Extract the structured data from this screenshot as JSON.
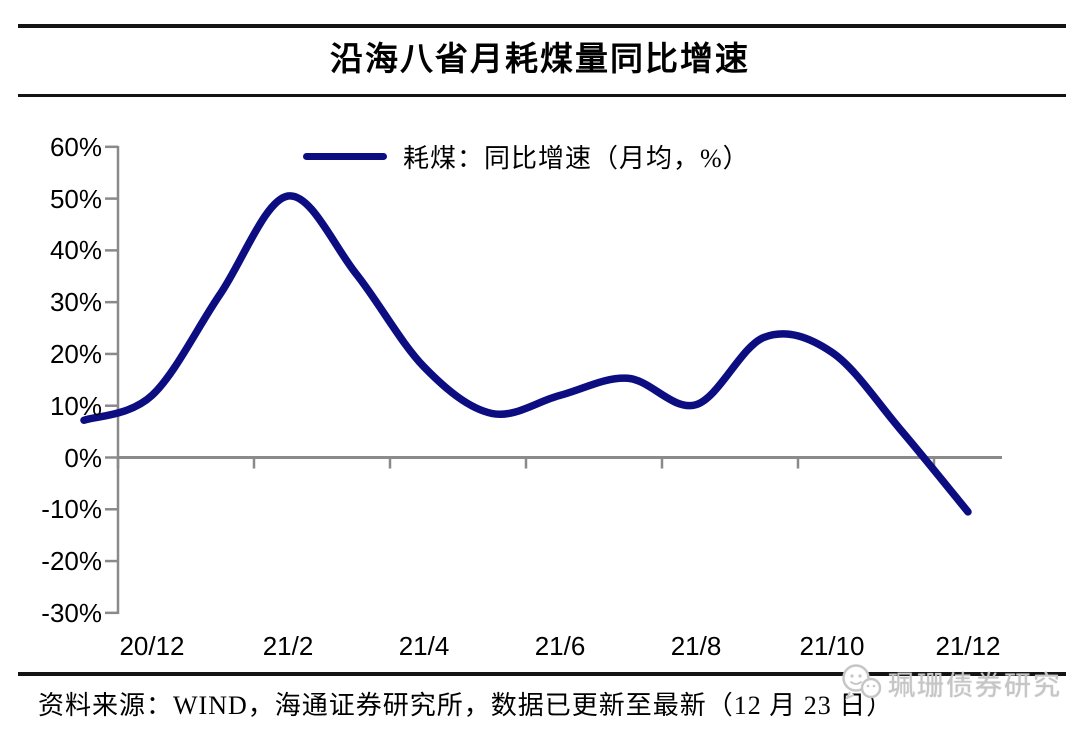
{
  "title": "沿海八省月耗煤量同比增速",
  "legend": {
    "label": "耗煤：同比增速（月均，%）"
  },
  "chart_data": {
    "type": "line",
    "title": "沿海八省月耗煤量同比增速",
    "series": [
      {
        "name": "耗煤：同比增速（月均，%）",
        "x": [
          "20/11",
          "20/12",
          "21/1",
          "21/2",
          "21/3",
          "21/4",
          "21/5",
          "21/6",
          "21/7",
          "21/8",
          "21/9",
          "21/10",
          "21/11",
          "21/12"
        ],
        "values": [
          7.2,
          12.0,
          31.5,
          50.5,
          35.5,
          17.5,
          8.5,
          12.0,
          15.3,
          10.2,
          23.2,
          20.3,
          5.5,
          -10.5
        ],
        "unit": "%"
      }
    ],
    "x_tick_labels": [
      "20/12",
      "21/2",
      "21/4",
      "21/6",
      "21/8",
      "21/10",
      "21/12"
    ],
    "y_tick_labels": [
      "60%",
      "50%",
      "40%",
      "30%",
      "20%",
      "10%",
      "0%",
      "-10%",
      "-20%",
      "-30%"
    ],
    "y_ticks": [
      60,
      50,
      40,
      30,
      20,
      10,
      0,
      -10,
      -20,
      -30
    ],
    "ylim": [
      -30,
      60
    ],
    "xlabel": "",
    "ylabel": "",
    "grid": false,
    "zero_line": true,
    "smoothed": true,
    "legend_position": "top-center",
    "line_color": "#0d0d82",
    "axis_color": "#8a8a8a"
  },
  "source_note": "资料来源：WIND，海通证券研究所，数据已更新至最新（12 月 23 日）",
  "watermark": {
    "icon": "wechat-bubbles-icon",
    "text": "珮珊债券研究"
  }
}
